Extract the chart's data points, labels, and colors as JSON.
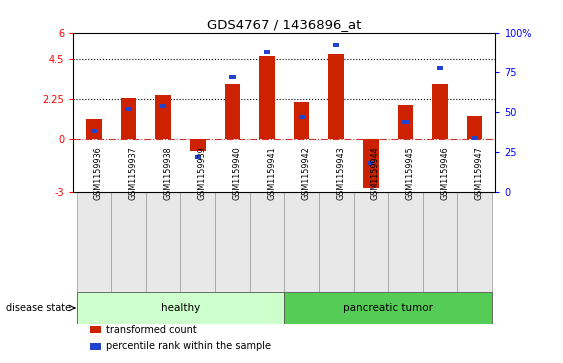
{
  "title": "GDS4767 / 1436896_at",
  "samples": [
    "GSM1159936",
    "GSM1159937",
    "GSM1159938",
    "GSM1159939",
    "GSM1159940",
    "GSM1159941",
    "GSM1159942",
    "GSM1159943",
    "GSM1159944",
    "GSM1159945",
    "GSM1159946",
    "GSM1159947"
  ],
  "red_values": [
    1.1,
    2.3,
    2.5,
    -0.7,
    3.1,
    4.7,
    2.1,
    4.8,
    -2.8,
    1.9,
    3.1,
    1.3
  ],
  "blue_pct": [
    38,
    52,
    54,
    22,
    72,
    88,
    47,
    92,
    18,
    44,
    78,
    34
  ],
  "disease_groups": [
    {
      "label": "healthy",
      "start": 0,
      "end": 5,
      "color": "#ccffcc"
    },
    {
      "label": "pancreatic tumor",
      "start": 6,
      "end": 11,
      "color": "#55cc55"
    }
  ],
  "ylim_left": [
    -3,
    6
  ],
  "ylim_right": [
    0,
    100
  ],
  "yticks_left": [
    -3,
    0,
    2.25,
    4.5,
    6
  ],
  "ytick_labels_left": [
    "-3",
    "0",
    "2.25",
    "4.5",
    "6"
  ],
  "yticks_right": [
    0,
    25,
    50,
    75,
    100
  ],
  "ytick_labels_right": [
    "0",
    "25",
    "50",
    "75",
    "100%"
  ],
  "hlines_y": [
    0,
    2.25,
    4.5
  ],
  "hline_styles": [
    "dashdot",
    "dotted",
    "dotted"
  ],
  "hline_colors": [
    "#cc3333",
    "black",
    "black"
  ],
  "red_color": "#cc2200",
  "blue_color": "#2244cc",
  "background_color": "#ffffff",
  "disease_label": "disease state",
  "legend_items": [
    "transformed count",
    "percentile rank within the sample"
  ]
}
